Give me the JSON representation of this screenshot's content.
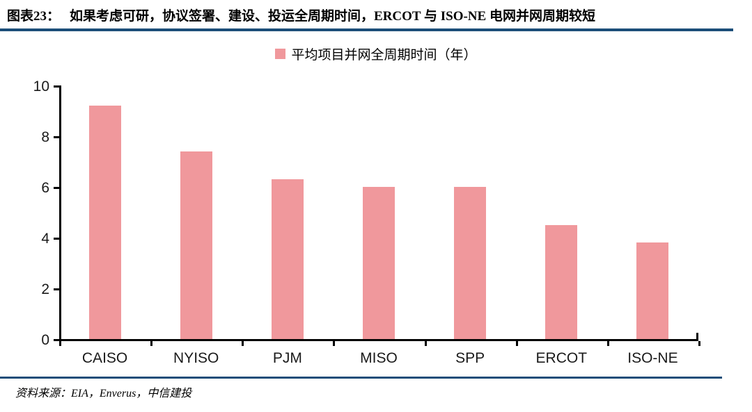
{
  "header": {
    "figure_label": "图表23：",
    "title": "如果考虑可研，协议签署、建设、投运全周期时间，ERCOT 与 ISO-NE 电网并网周期较短"
  },
  "legend": {
    "label": "平均项目并网全周期时间（年）"
  },
  "footer": {
    "source": "资料来源：EIA，Enverus，中信建投"
  },
  "colors": {
    "bar": "#F0989C",
    "rule": "#1C4E79",
    "axis": "#000000",
    "tick_label": "#1A1A1A"
  },
  "chart_data": {
    "type": "bar",
    "categories": [
      "CAISO",
      "NYISO",
      "PJM",
      "MISO",
      "SPP",
      "ERCOT",
      "ISO-NE"
    ],
    "values": [
      9.2,
      7.4,
      6.3,
      6.0,
      6.0,
      4.5,
      3.8
    ],
    "title": "平均项目并网全周期时间（年）",
    "xlabel": "",
    "ylabel": "",
    "ylim": [
      0,
      10
    ],
    "yticks": [
      0,
      2,
      4,
      6,
      8,
      10
    ],
    "grid": false,
    "legend_position": "top-center",
    "bar_color": "#F0989C"
  }
}
